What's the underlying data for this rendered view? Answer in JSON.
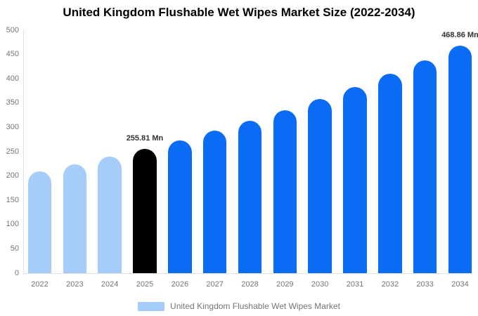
{
  "title": "United Kingdom Flushable Wet Wipes Market Size (2022-2034)",
  "chart_data": {
    "type": "bar",
    "title": "United Kingdom Flushable Wet Wipes Market Size (2022-2034)",
    "categories": [
      "2022",
      "2023",
      "2024",
      "2025",
      "2026",
      "2027",
      "2028",
      "2029",
      "2030",
      "2031",
      "2032",
      "2033",
      "2034"
    ],
    "values": [
      209.0,
      223.6,
      239.2,
      255.81,
      273.63,
      292.69,
      313.07,
      334.87,
      358.19,
      383.13,
      409.81,
      438.34,
      468.86
    ],
    "unit": "Mn",
    "xlabel": "",
    "ylabel": "",
    "ylim": [
      0,
      500
    ],
    "y_ticks": [
      0,
      50,
      100,
      150,
      200,
      250,
      300,
      350,
      400,
      450,
      500
    ],
    "grid": false,
    "legend_position": "bottom",
    "bar_colors": [
      "#a6cdfa",
      "#a6cdfa",
      "#a6cdfa",
      "#000000",
      "#0a6cf5",
      "#0a6cf5",
      "#0a6cf5",
      "#0a6cf5",
      "#0a6cf5",
      "#0a6cf5",
      "#0a6cf5",
      "#0a6cf5",
      "#0a6cf5"
    ],
    "annotations": [
      {
        "category": "2025",
        "text": "255.81 Mn"
      },
      {
        "category": "2034",
        "text": "468.86 Mn"
      }
    ],
    "colors": {
      "historical_bar": "#a6cdfa",
      "base_year_bar": "#000000",
      "forecast_bar": "#0a6cf5",
      "axis_line": "#e0e0e0",
      "tick_label": "#757575",
      "data_label": "#333333",
      "title": "#000000"
    }
  },
  "legend": {
    "label": "United Kingdom Flushable Wet Wipes Market",
    "swatch_color": "#a6cdfa"
  }
}
